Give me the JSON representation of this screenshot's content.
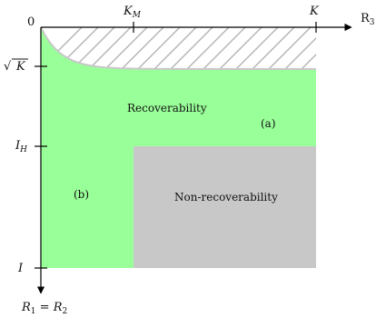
{
  "colors": {
    "recoverable": "#99FF99",
    "non_recoverable": "#C8C8C8",
    "hatch": "#B4B4B4",
    "boundary": "#C8C8C8",
    "axis": "#000000"
  },
  "axes": {
    "origin_label": "0",
    "x_axis": {
      "base": "R",
      "sub": "3"
    },
    "y_axis": {
      "base": "R",
      "sub1": "1",
      "mid": " = ",
      "base2": "R",
      "sub2": "2"
    }
  },
  "x_ticks": [
    {
      "base": "K",
      "sub": "M"
    },
    {
      "base": "K",
      "sub": ""
    }
  ],
  "y_ticks": [
    {
      "base": "K",
      "sqrt": true,
      "sub": ""
    },
    {
      "base": "I",
      "sub": "H"
    },
    {
      "base": "I",
      "sub": ""
    }
  ],
  "regions": {
    "recoverability": "Recoverability",
    "non_recoverability": "Non-recoverability",
    "label_a": "(a)",
    "label_b": "(b)"
  }
}
